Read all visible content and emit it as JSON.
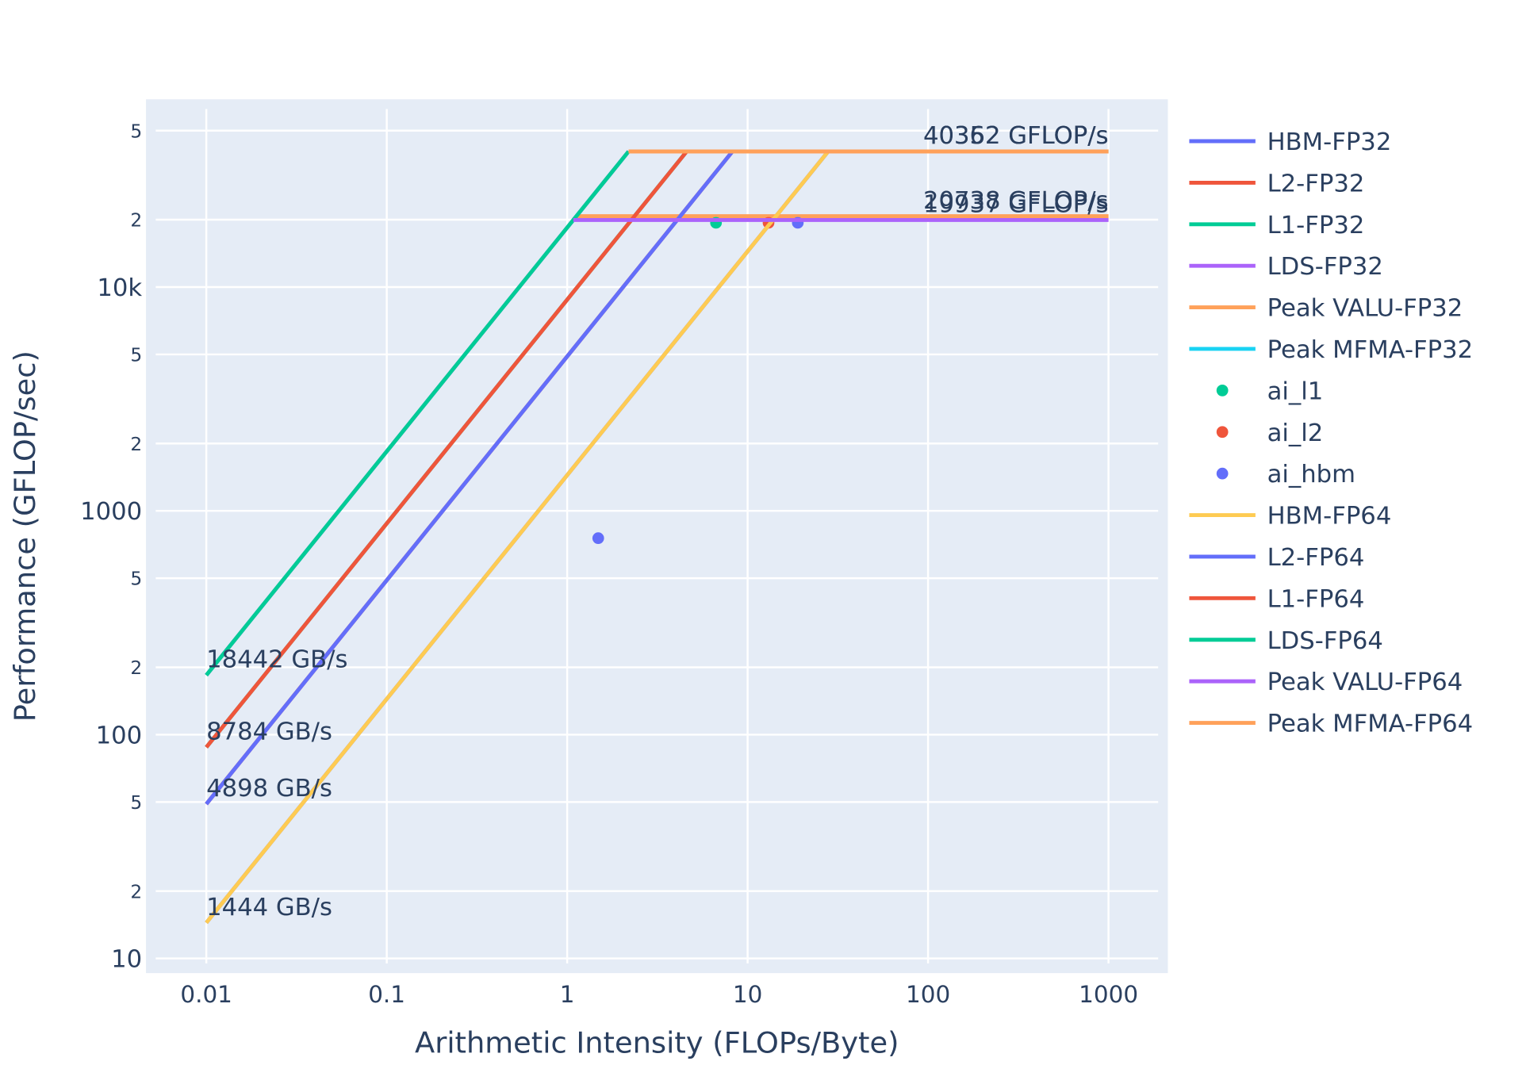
{
  "chart_data": {
    "type": "line",
    "x_label": "Arithmetic Intensity (FLOPs/Byte)",
    "y_label": "Performance (GFLOP/sec)",
    "log_x": true,
    "log_y": true,
    "grid": true,
    "legend": "right",
    "xlim": [
      0.00463,
      2133
    ],
    "ylim": [
      8.6,
      69000
    ],
    "xticks": [
      0.01,
      0.1,
      1,
      10,
      100,
      1000
    ],
    "yticks": [
      10,
      {
        "value": 20,
        "label": "2"
      },
      {
        "value": 50,
        "label": "5"
      },
      100,
      {
        "value": 200,
        "label": "2"
      },
      {
        "value": 500,
        "label": "5"
      },
      1000,
      {
        "value": 2000,
        "label": "2"
      },
      {
        "value": 5000,
        "label": "5"
      },
      {
        "value": 10000,
        "label": "10k"
      },
      {
        "value": 20000,
        "label": "2"
      },
      {
        "value": 50000,
        "label": "5"
      }
    ],
    "series": [
      {
        "name": "HBM-FP32",
        "mode": "lines",
        "color": "#636efa",
        "x": [
          0.01,
          27.95
        ],
        "values": [
          14.44,
          40362
        ]
      },
      {
        "name": "L2-FP32",
        "mode": "lines",
        "color": "#EF553B",
        "x": [
          0.01,
          8.24
        ],
        "values": [
          48.98,
          40362
        ]
      },
      {
        "name": "L1-FP32",
        "mode": "lines",
        "color": "#00cc96",
        "x": [
          0.01,
          4.595
        ],
        "values": [
          87.84,
          40362
        ]
      },
      {
        "name": "LDS-FP32",
        "mode": "lines",
        "color": "#ab63fa",
        "x": [
          0.01,
          2.189
        ],
        "values": [
          184.42,
          40362
        ]
      },
      {
        "name": "Peak VALU-FP32",
        "mode": "lines",
        "color": "#FFA15A",
        "x": [
          1.124,
          1000
        ],
        "values": [
          20738,
          20738
        ]
      },
      {
        "name": "Peak MFMA-FP32",
        "mode": "lines",
        "color": "#19d3f3",
        "x": [
          2.189,
          1000
        ],
        "values": [
          40362,
          40362
        ]
      },
      {
        "name": "ai_l1",
        "mode": "markers",
        "color": "#00cc96",
        "x": [
          6.68
        ],
        "values": [
          19370
        ]
      },
      {
        "name": "ai_l2",
        "mode": "markers",
        "color": "#EF553B",
        "x": [
          13.06
        ],
        "values": [
          19370
        ]
      },
      {
        "name": "ai_hbm",
        "mode": "markers",
        "color": "#636efa",
        "x": [
          18.97,
          1.486
        ],
        "values": [
          19370,
          755
        ]
      },
      {
        "name": "HBM-FP64",
        "mode": "lines",
        "color": "#FECB52",
        "x": [
          0.01,
          27.94
        ],
        "values": [
          14.44,
          40352
        ]
      },
      {
        "name": "L2-FP64",
        "mode": "lines",
        "color": "#636efa",
        "x": [
          0.01,
          8.239
        ],
        "values": [
          48.98,
          40352
        ]
      },
      {
        "name": "L1-FP64",
        "mode": "lines",
        "color": "#EF553B",
        "x": [
          0.01,
          4.594
        ],
        "values": [
          87.84,
          40352
        ]
      },
      {
        "name": "LDS-FP64",
        "mode": "lines",
        "color": "#00cc96",
        "x": [
          0.01,
          2.188
        ],
        "values": [
          184.42,
          40352
        ]
      },
      {
        "name": "Peak VALU-FP64",
        "mode": "lines",
        "color": "#ab63fa",
        "x": [
          1.081,
          1000
        ],
        "values": [
          19937,
          19937
        ]
      },
      {
        "name": "Peak MFMA-FP64",
        "mode": "lines",
        "color": "#FFA15A",
        "x": [
          2.188,
          1000
        ],
        "values": [
          40352,
          40352
        ]
      }
    ],
    "annotations": [
      {
        "text": "18442 GB/s",
        "x": 0.01,
        "y": 184.42,
        "anchor": "start"
      },
      {
        "text": "8784 GB/s",
        "x": 0.01,
        "y": 87.84,
        "anchor": "start"
      },
      {
        "text": "4898 GB/s",
        "x": 0.01,
        "y": 48.98,
        "anchor": "start"
      },
      {
        "text": "1444 GB/s",
        "x": 0.01,
        "y": 14.44,
        "anchor": "start"
      },
      {
        "text": "40362 GFLOP/s",
        "x": 1000,
        "y": 40362,
        "anchor": "end"
      },
      {
        "text": "40352 GFLOP/s",
        "x": 1000,
        "y": 40352,
        "anchor": "end"
      },
      {
        "text": "20738 GFLOP/s",
        "x": 1000,
        "y": 20738,
        "anchor": "end"
      },
      {
        "text": "19937 GFLOP/s",
        "x": 1000,
        "y": 19937,
        "anchor": "end"
      }
    ]
  }
}
